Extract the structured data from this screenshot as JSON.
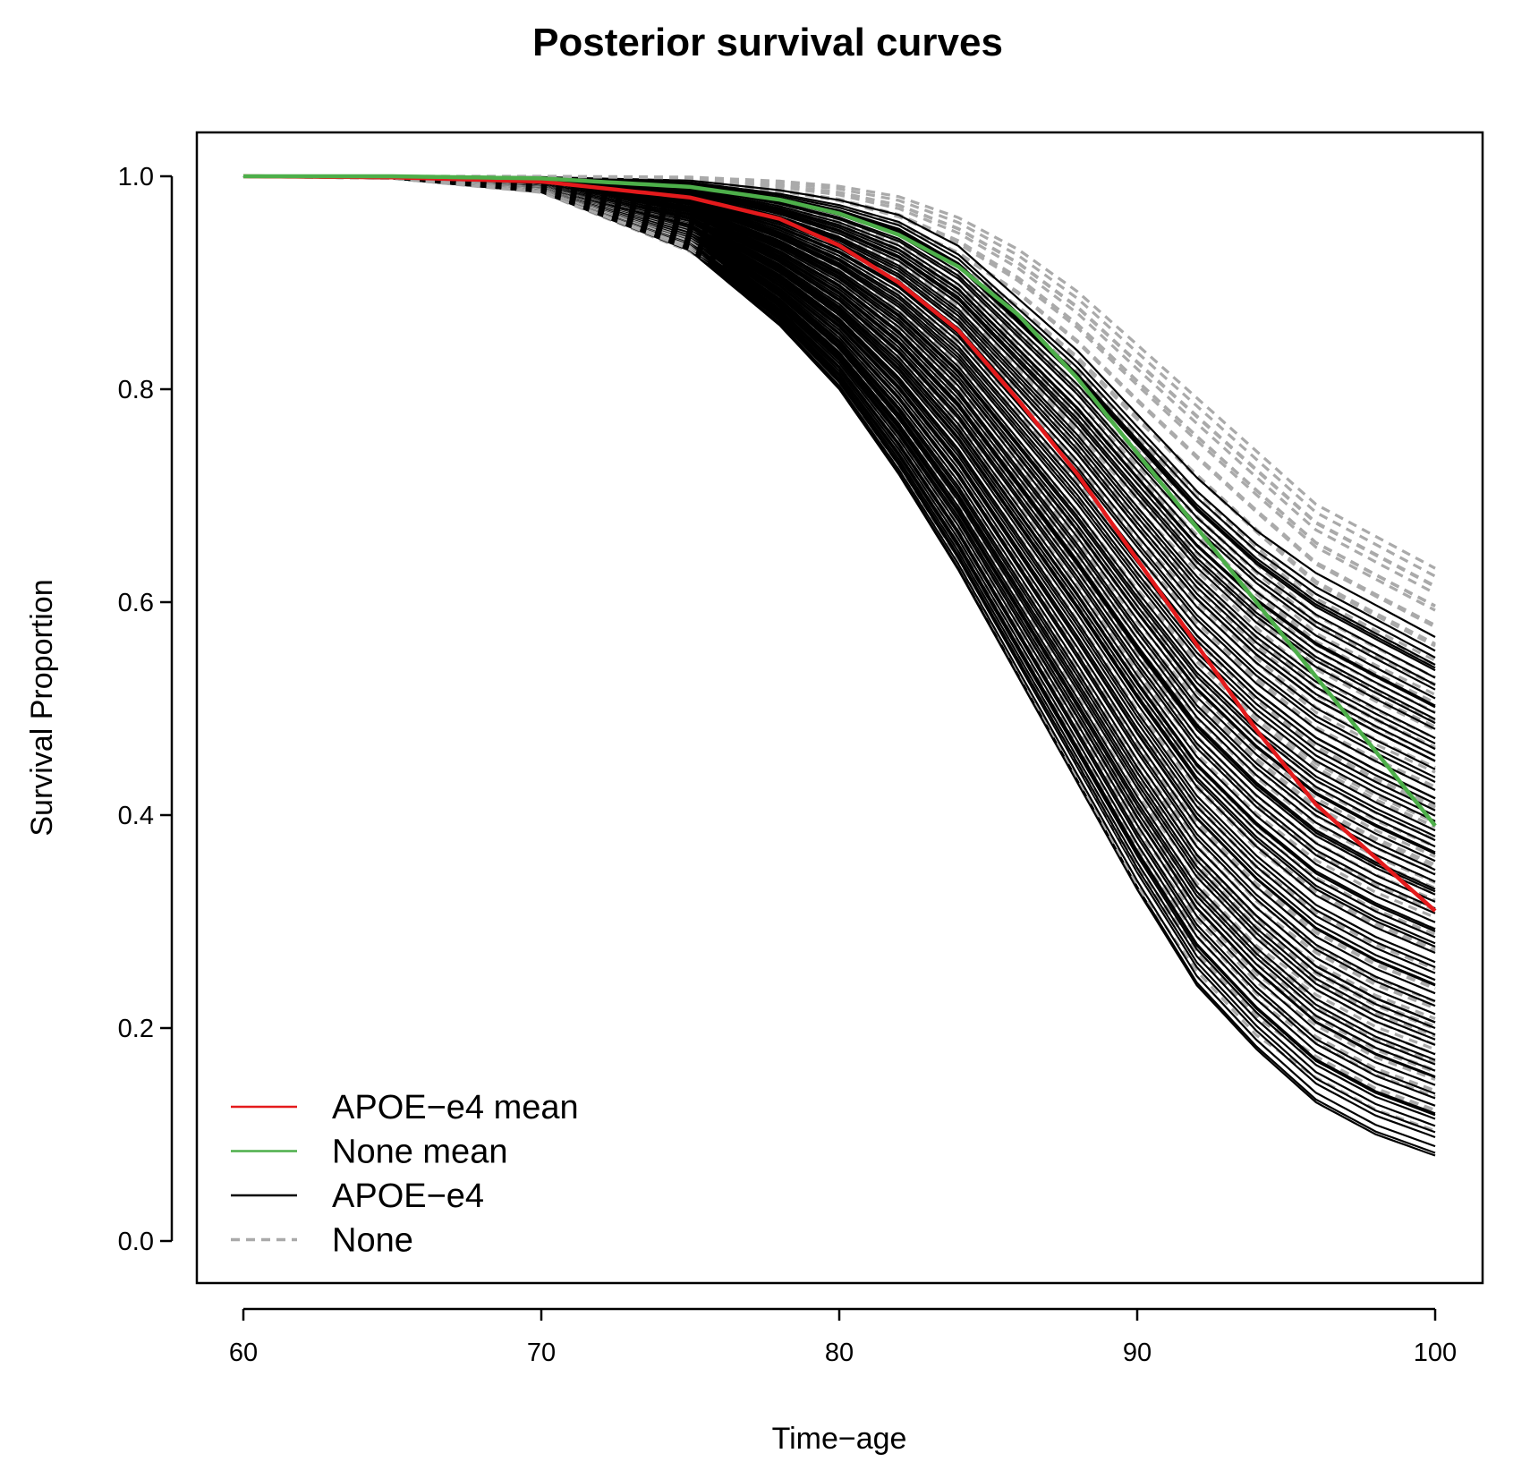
{
  "chart_data": {
    "type": "line",
    "title": "Posterior survival curves",
    "xlabel": "Time−age",
    "ylabel": "Survival Proportion",
    "xlim": [
      60,
      100
    ],
    "ylim": [
      0.0,
      1.0
    ],
    "xticks": [
      60,
      70,
      80,
      90,
      100
    ],
    "xtick_labels": [
      "60",
      "70",
      "80",
      "90",
      "100"
    ],
    "yticks": [
      0.0,
      0.2,
      0.4,
      0.6,
      0.8,
      1.0
    ],
    "ytick_labels": [
      "0.0",
      "0.2",
      "0.4",
      "0.6",
      "0.8",
      "1.0"
    ],
    "grid": false,
    "legend_position": "bottom-left",
    "legend": [
      {
        "label": "APOE−e4 mean",
        "color": "#e41a1c",
        "style": "solid"
      },
      {
        "label": "None mean",
        "color": "#4daf4a",
        "style": "solid"
      },
      {
        "label": "APOE−e4",
        "color": "#000000",
        "style": "solid"
      },
      {
        "label": "None",
        "color": "#aaaaaa",
        "style": "dashed"
      }
    ],
    "series": [
      {
        "name": "APOE-e4 mean",
        "color": "#e41a1c",
        "style": "solid",
        "x": [
          60,
          65,
          70,
          75,
          78,
          80,
          82,
          84,
          86,
          88,
          90,
          92,
          94,
          96,
          98,
          100
        ],
        "y": [
          1.0,
          0.999,
          0.995,
          0.98,
          0.96,
          0.935,
          0.9,
          0.855,
          0.79,
          0.72,
          0.64,
          0.56,
          0.48,
          0.41,
          0.36,
          0.31
        ]
      },
      {
        "name": "None mean",
        "color": "#4daf4a",
        "style": "solid",
        "x": [
          60,
          65,
          70,
          75,
          78,
          80,
          82,
          84,
          86,
          88,
          90,
          92,
          94,
          96,
          98,
          100
        ],
        "y": [
          1.0,
          1.0,
          0.998,
          0.99,
          0.978,
          0.965,
          0.945,
          0.915,
          0.87,
          0.81,
          0.74,
          0.67,
          0.6,
          0.53,
          0.46,
          0.39
        ]
      }
    ],
    "posterior_bands": [
      {
        "name": "APOE-e4",
        "color": "#000000",
        "style": "solid",
        "n_draws": 90,
        "x": [
          60,
          65,
          70,
          75,
          78,
          80,
          82,
          84,
          86,
          88,
          90,
          92,
          94,
          96,
          98,
          100
        ],
        "y_lower": [
          1.0,
          0.998,
          0.985,
          0.93,
          0.86,
          0.8,
          0.72,
          0.63,
          0.53,
          0.43,
          0.33,
          0.24,
          0.18,
          0.13,
          0.1,
          0.08
        ],
        "y_upper": [
          1.0,
          1.0,
          0.999,
          0.995,
          0.985,
          0.975,
          0.96,
          0.93,
          0.88,
          0.83,
          0.77,
          0.71,
          0.66,
          0.62,
          0.59,
          0.56
        ]
      },
      {
        "name": "None",
        "color": "#aaaaaa",
        "style": "dashed",
        "n_draws": 90,
        "x": [
          60,
          65,
          70,
          75,
          78,
          80,
          82,
          84,
          86,
          88,
          90,
          92,
          94,
          96,
          98,
          100
        ],
        "y_lower": [
          1.0,
          0.998,
          0.985,
          0.93,
          0.87,
          0.81,
          0.73,
          0.64,
          0.54,
          0.44,
          0.34,
          0.26,
          0.2,
          0.16,
          0.13,
          0.11
        ],
        "y_upper": [
          1.0,
          1.0,
          1.0,
          0.999,
          0.995,
          0.99,
          0.98,
          0.96,
          0.93,
          0.89,
          0.84,
          0.79,
          0.74,
          0.69,
          0.66,
          0.63
        ]
      }
    ]
  }
}
